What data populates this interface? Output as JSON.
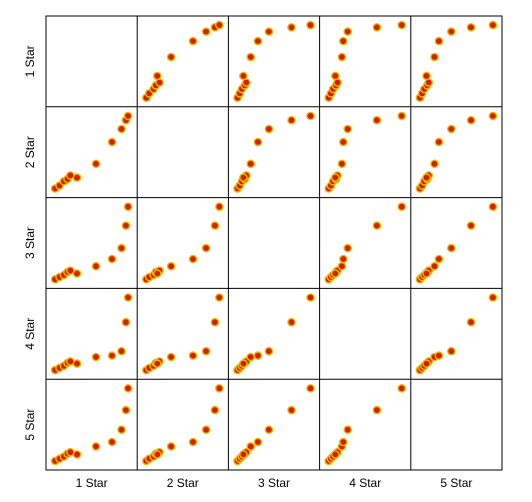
{
  "chart_data": {
    "type": "scatter",
    "matrix": true,
    "variables": [
      "1 Star",
      "2 Star",
      "3 Star",
      "4 Star",
      "5 Star"
    ],
    "diagonal": "empty",
    "grid": false,
    "legend": "none",
    "colors": {
      "fill": "#d41e00",
      "edge": "#f0b800",
      "frame": "#000000"
    },
    "units": "normalized value within each variable's own range (0 = min, 1 = max)",
    "data": {
      "1 Star": [
        0.0,
        0.06,
        0.12,
        0.17,
        0.21,
        0.3,
        0.56,
        0.78,
        0.91,
        0.97,
        1.0
      ],
      "2 Star": [
        0.0,
        0.04,
        0.1,
        0.13,
        0.18,
        0.15,
        0.34,
        0.64,
        0.82,
        0.94,
        1.0
      ],
      "3 Star": [
        0.0,
        0.03,
        0.06,
        0.1,
        0.12,
        0.08,
        0.18,
        0.28,
        0.43,
        0.74,
        1.0
      ],
      "4 Star": [
        0.0,
        0.03,
        0.06,
        0.1,
        0.12,
        0.09,
        0.18,
        0.2,
        0.26,
        0.66,
        1.0
      ],
      "5 Star": [
        0.0,
        0.03,
        0.06,
        0.1,
        0.12,
        0.09,
        0.2,
        0.26,
        0.43,
        0.7,
        1.0
      ]
    }
  }
}
